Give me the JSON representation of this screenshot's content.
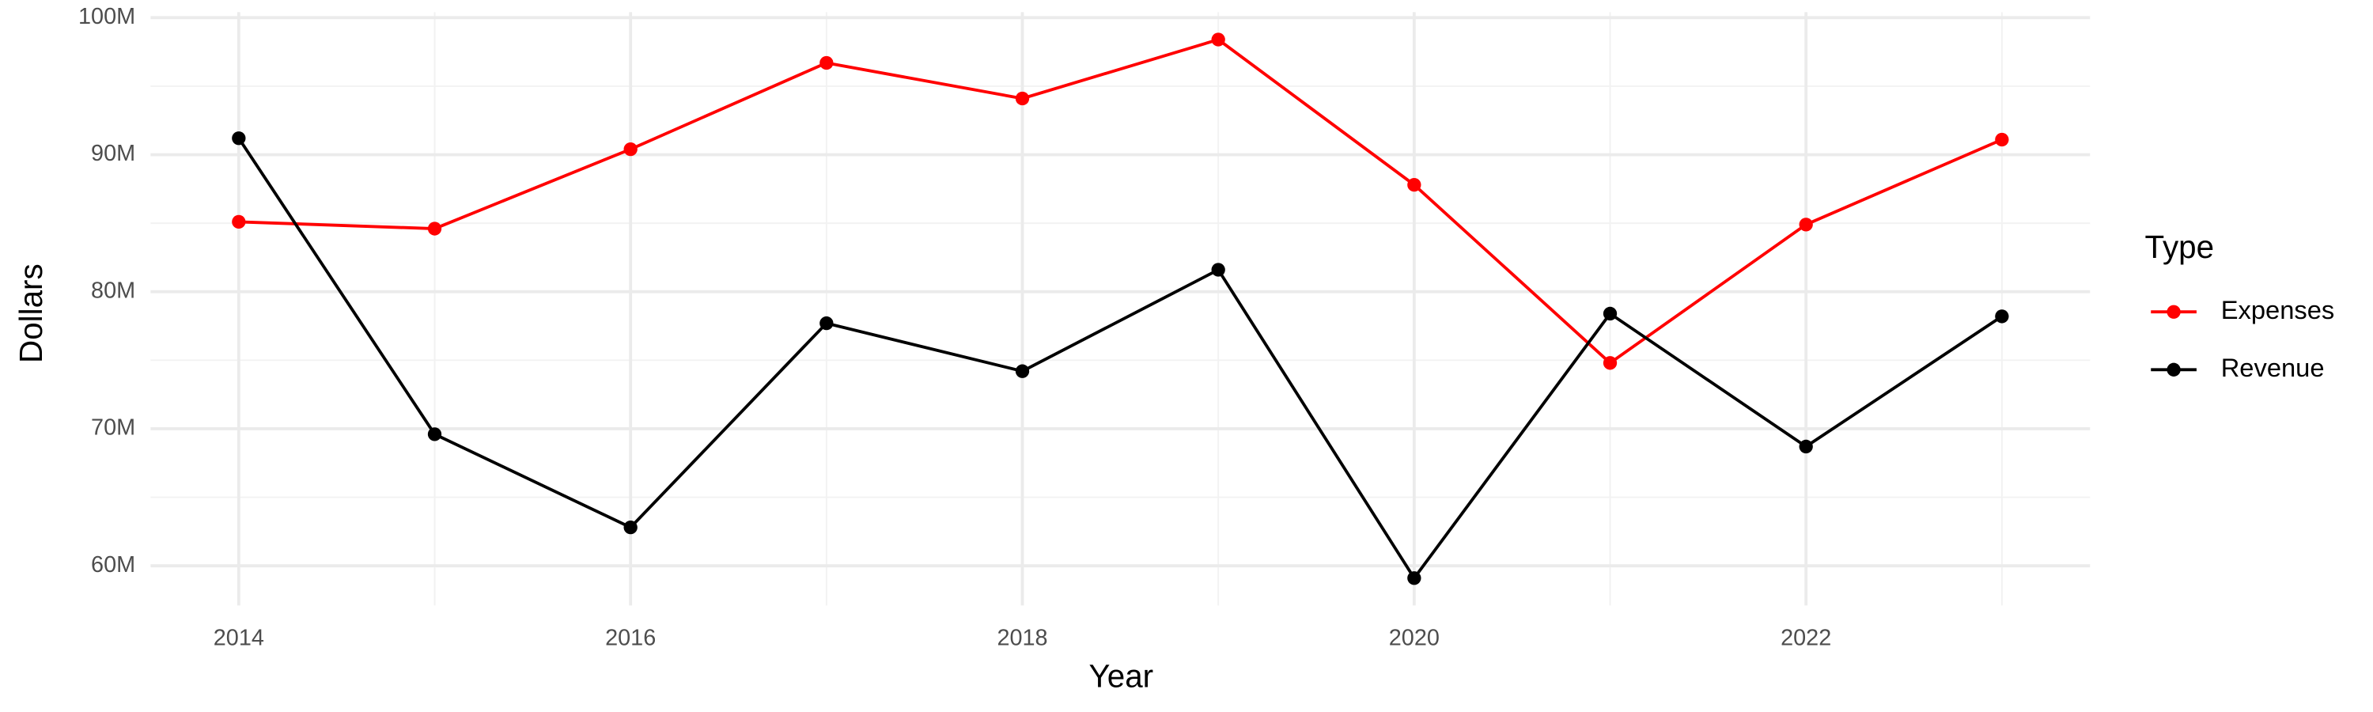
{
  "chart_data": {
    "type": "line",
    "x": [
      2014,
      2015,
      2016,
      2017,
      2018,
      2019,
      2020,
      2021,
      2022,
      2023
    ],
    "series": [
      {
        "name": "Expenses",
        "color": "#ff0000",
        "values": [
          85100000,
          84600000,
          90400000,
          96700000,
          94100000,
          98400000,
          87800000,
          74800000,
          84900000,
          91100000
        ]
      },
      {
        "name": "Revenue",
        "color": "#000000",
        "values": [
          91200000,
          69600000,
          62800000,
          77700000,
          74200000,
          81600000,
          59100000,
          78400000,
          68700000,
          78200000
        ]
      }
    ],
    "x_label": "Year",
    "y_label": "Dollars",
    "legend_title": "Type",
    "legend": "right",
    "xlim": [
      2013.55,
      2023.45
    ],
    "xticks": [
      2014,
      2016,
      2018,
      2020,
      2022
    ],
    "ylim": [
      57100000,
      100400000
    ],
    "yticks": [
      {
        "value": 60000000,
        "label": "60M"
      },
      {
        "value": 70000000,
        "label": "70M"
      },
      {
        "value": 80000000,
        "label": "80M"
      },
      {
        "value": 90000000,
        "label": "90M"
      },
      {
        "value": 100000000,
        "label": "100M"
      }
    ],
    "grid": true
  }
}
